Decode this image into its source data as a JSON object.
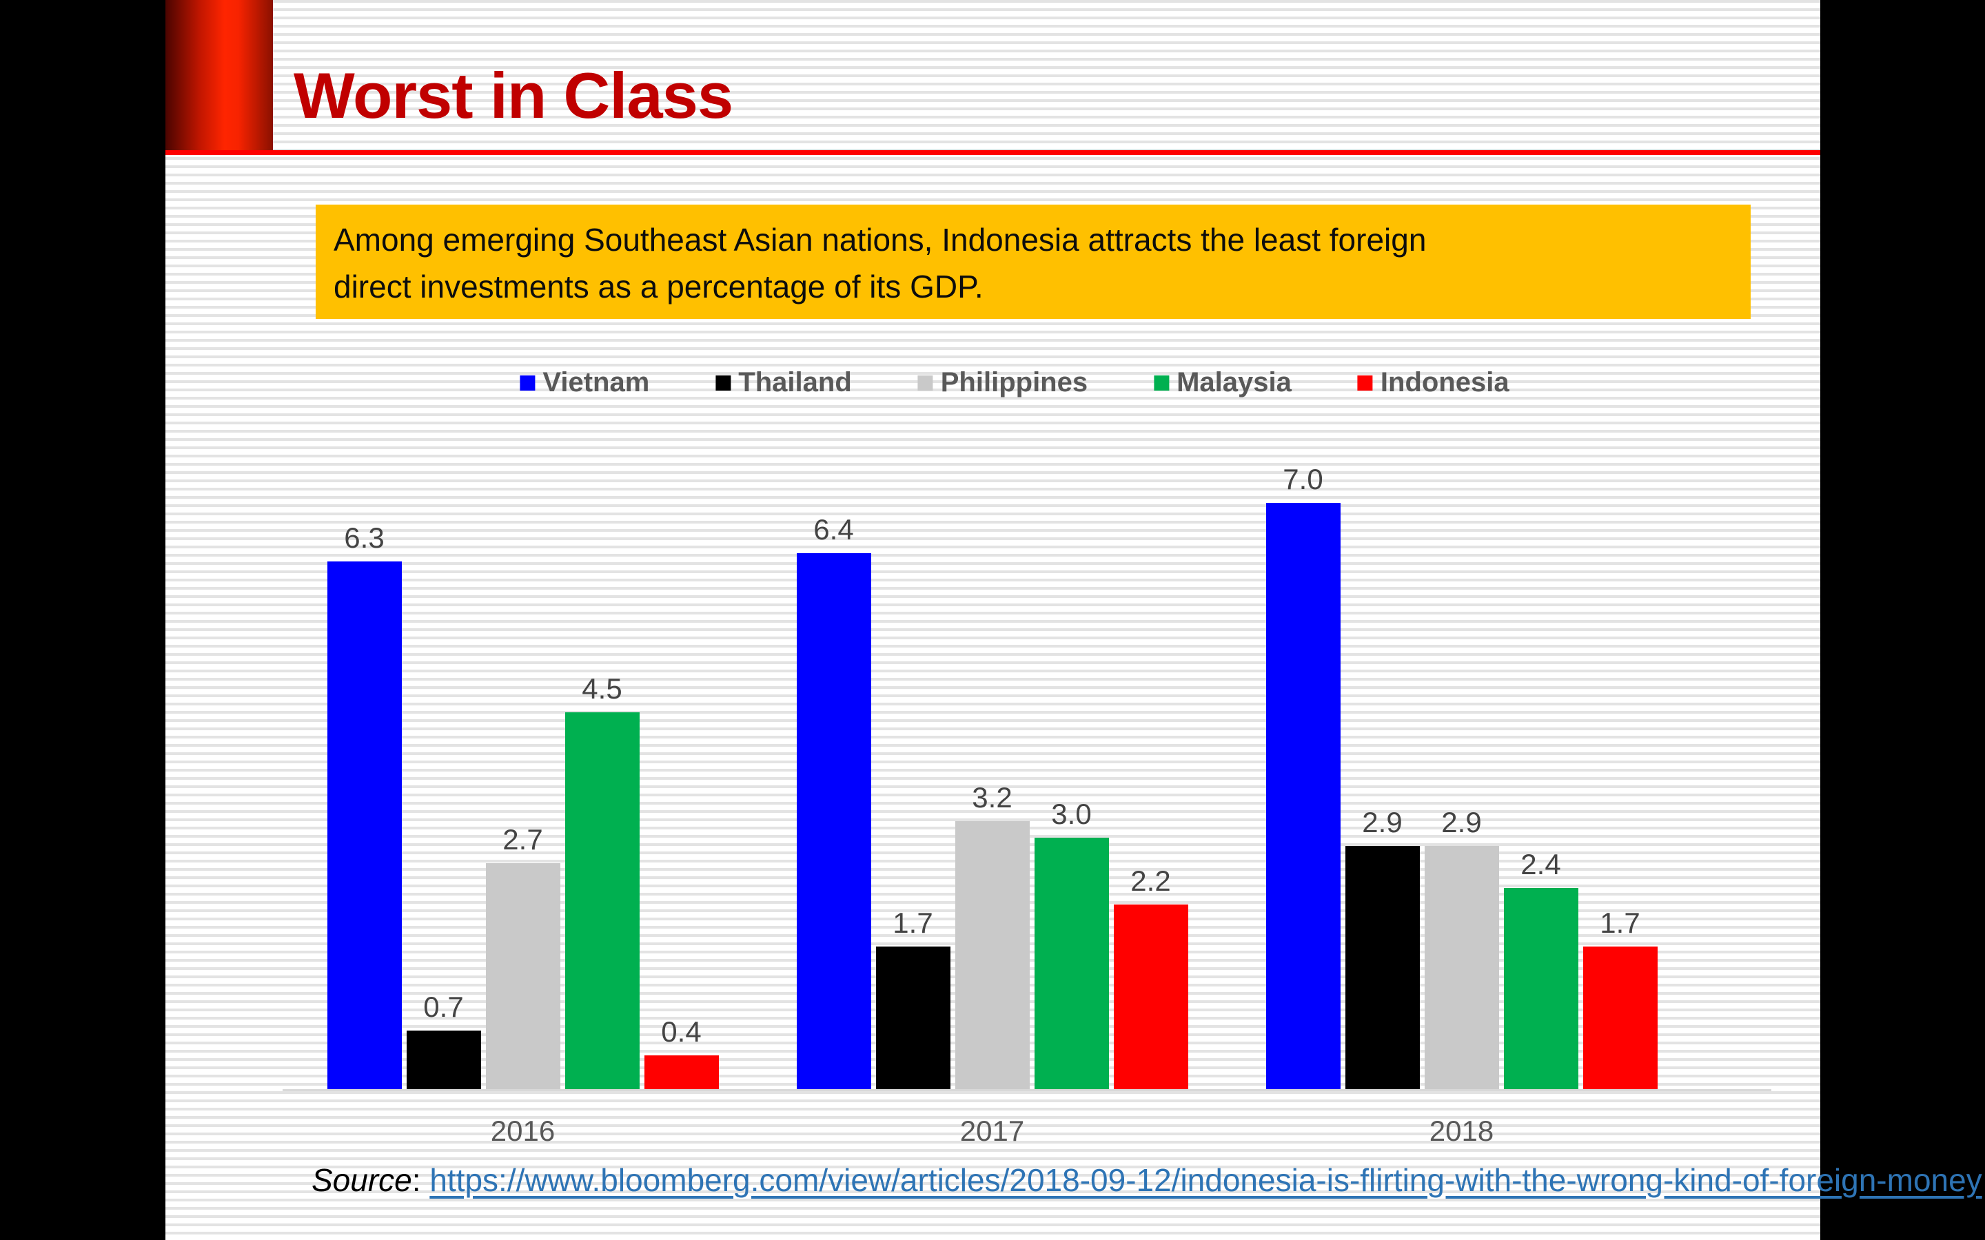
{
  "slide": {
    "title": "Worst in Class",
    "callout_lines": [
      "Among emerging Southeast Asian nations, Indonesia attracts the least foreign",
      "direct investments as a percentage of its GDP."
    ]
  },
  "source": {
    "label": "Source",
    "separator": ": ",
    "url": "https://www.bloomberg.com/view/articles/2018-09-12/indonesia-is-flirting-with-the-wrong-kind-of-foreign-money"
  },
  "colors": {
    "title": "#c00000",
    "accent_rule": "#fe0000",
    "callout_background": "#ffc000",
    "legend_text": "#595959",
    "value_label": "#444444",
    "axis_line": "#d9d9d9",
    "hyperlink": "#2e74b5"
  },
  "chart_data": {
    "type": "bar",
    "categories": [
      "2016",
      "2017",
      "2018"
    ],
    "series": [
      {
        "name": "Vietnam",
        "color": "#0000ff",
        "values": [
          6.3,
          6.4,
          7.0
        ]
      },
      {
        "name": "Thailand",
        "color": "#000000",
        "values": [
          0.7,
          1.7,
          2.9
        ]
      },
      {
        "name": "Philippines",
        "color": "#c9c9c9",
        "values": [
          2.7,
          3.2,
          2.9
        ]
      },
      {
        "name": "Malaysia",
        "color": "#00b050",
        "values": [
          4.5,
          3.0,
          2.4
        ]
      },
      {
        "name": "Indonesia",
        "color": "#ff0000",
        "values": [
          0.4,
          2.2,
          1.7
        ]
      }
    ],
    "value_labels": true,
    "value_format": "one_decimal",
    "legend_position": "top",
    "xlabel": "",
    "ylabel": "",
    "ylim": [
      0,
      7.5
    ],
    "grid": false
  }
}
